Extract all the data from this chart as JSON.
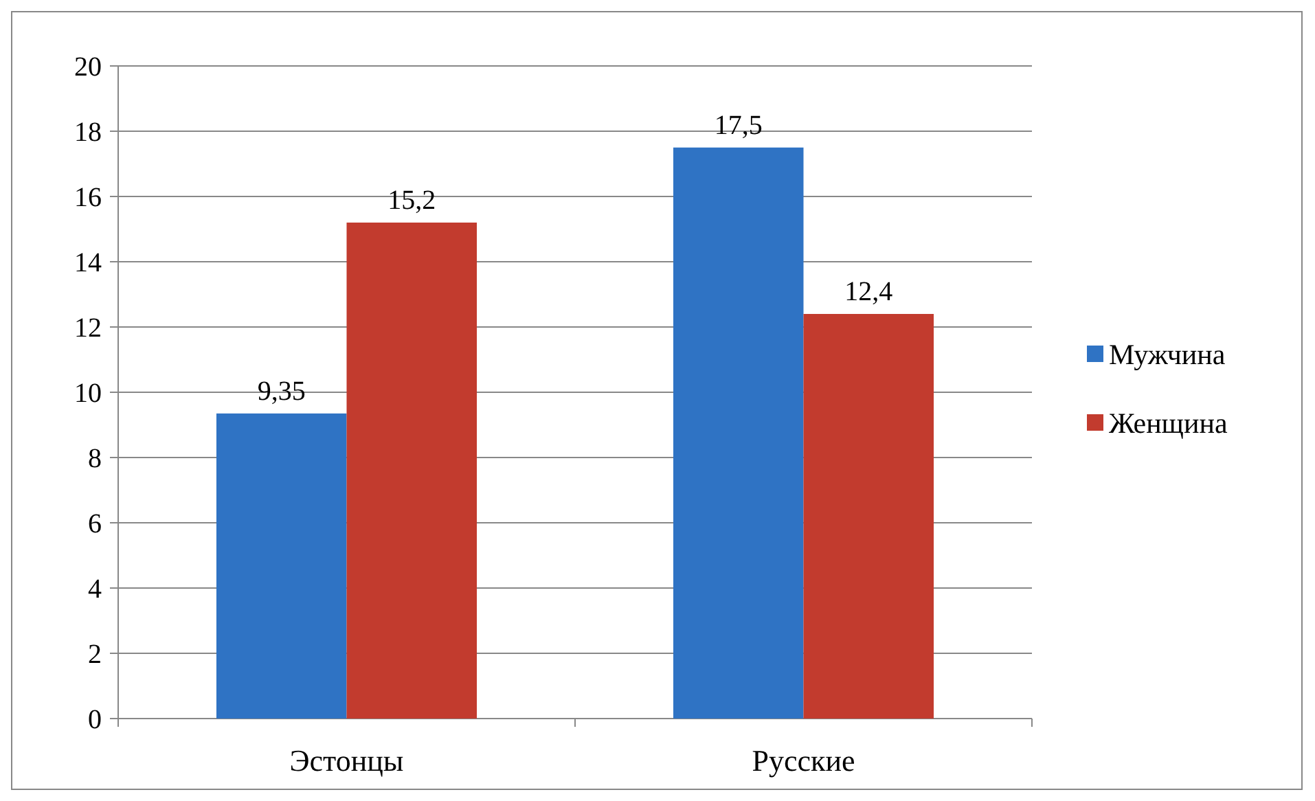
{
  "chart_data": {
    "type": "bar",
    "categories": [
      "Эстонцы",
      "Русские"
    ],
    "series": [
      {
        "name": "Мужчина",
        "color": "#2f73c4",
        "values": [
          9.35,
          17.5
        ],
        "value_labels": [
          "9,35",
          "17,5"
        ]
      },
      {
        "name": "Женщина",
        "color": "#c23b2e",
        "values": [
          15.2,
          12.4
        ],
        "value_labels": [
          "15,2",
          "12,4"
        ]
      }
    ],
    "ylim": [
      0,
      20
    ],
    "yticks": [
      0,
      2,
      4,
      6,
      8,
      10,
      12,
      14,
      16,
      18,
      20
    ],
    "grid": "y",
    "legend": "right"
  }
}
